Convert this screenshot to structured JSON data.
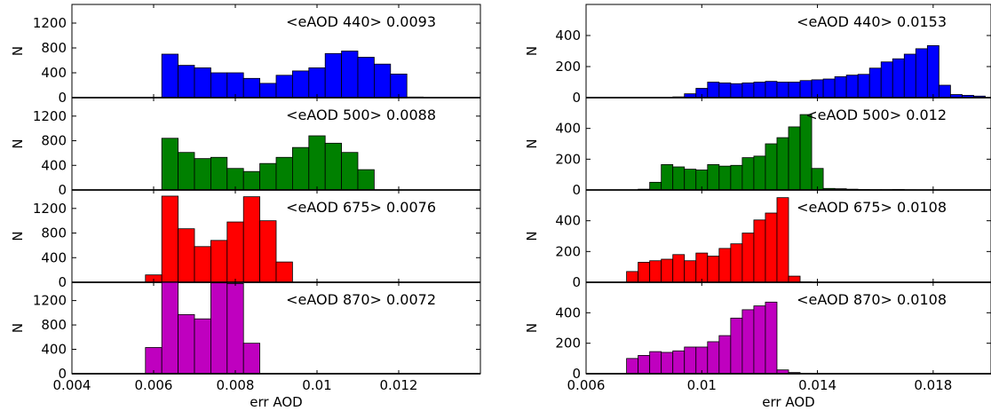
{
  "chart_data": [
    {
      "type": "bar",
      "column": "left",
      "xlabel": "err AOD",
      "xlim": [
        0.004,
        0.014
      ],
      "xticks": [
        0.004,
        0.006,
        0.008,
        0.01,
        0.012
      ],
      "xtick_labels": [
        "0.004",
        "0.006",
        "0.008",
        "0.01",
        "0.012"
      ],
      "bin_width": 0.0004,
      "panels": [
        {
          "annotation": "<eAOD 440> 0.0093",
          "ylabel": "N",
          "color": "#0000ff",
          "ylim": [
            0,
            1500
          ],
          "yticks": [
            0,
            400,
            800,
            1200
          ],
          "ytick_labels": [
            "0",
            "400",
            "800",
            "1200"
          ],
          "bin_starts": [
            0.0062,
            0.0066,
            0.007,
            0.0074,
            0.0078,
            0.0082,
            0.0086,
            0.009,
            0.0094,
            0.0098,
            0.0102,
            0.0106,
            0.011,
            0.0114,
            0.0118,
            0.0122
          ],
          "values": [
            700,
            520,
            480,
            400,
            400,
            310,
            230,
            360,
            430,
            480,
            710,
            750,
            650,
            540,
            380,
            10
          ]
        },
        {
          "annotation": "<eAOD 500> 0.0088",
          "ylabel": "N",
          "color": "#008000",
          "ylim": [
            0,
            1500
          ],
          "yticks": [
            0,
            400,
            800,
            1200
          ],
          "ytick_labels": [
            "0",
            "400",
            "800",
            "1200"
          ],
          "bin_starts": [
            0.0062,
            0.0066,
            0.007,
            0.0074,
            0.0078,
            0.0082,
            0.0086,
            0.009,
            0.0094,
            0.0098,
            0.0102,
            0.0106,
            0.011
          ],
          "values": [
            840,
            610,
            510,
            530,
            350,
            300,
            430,
            530,
            690,
            880,
            760,
            610,
            330
          ]
        },
        {
          "annotation": "<eAOD 675> 0.0076",
          "ylabel": "N",
          "color": "#ff0000",
          "ylim": [
            0,
            1500
          ],
          "yticks": [
            0,
            400,
            800,
            1200
          ],
          "ytick_labels": [
            "0",
            "400",
            "800",
            "1200"
          ],
          "bin_starts": [
            0.0058,
            0.0062,
            0.0066,
            0.007,
            0.0074,
            0.0078,
            0.0082,
            0.0086,
            0.009
          ],
          "values": [
            120,
            1400,
            870,
            580,
            680,
            980,
            1390,
            1000,
            330
          ]
        },
        {
          "annotation": "<eAOD 870> 0.0072",
          "ylabel": "N",
          "color": "#bf00bf",
          "ylim": [
            0,
            1500
          ],
          "yticks": [
            0,
            400,
            800,
            1200
          ],
          "ytick_labels": [
            "0",
            "400",
            "800",
            "1200"
          ],
          "bin_starts": [
            0.0058,
            0.0062,
            0.0066,
            0.007,
            0.0074,
            0.0078,
            0.0082
          ],
          "values": [
            430,
            1500,
            970,
            900,
            1490,
            1480,
            500
          ]
        }
      ]
    },
    {
      "type": "bar",
      "column": "right",
      "xlabel": "err AOD",
      "xlim": [
        0.006,
        0.02
      ],
      "xticks": [
        0.006,
        0.01,
        0.014,
        0.018
      ],
      "xtick_labels": [
        "0.006",
        "0.01",
        "0.014",
        "0.018"
      ],
      "bin_width": 0.0004,
      "panels": [
        {
          "annotation": "<eAOD 440> 0.0153",
          "ylabel": "N",
          "color": "#0000ff",
          "ylim": [
            0,
            600
          ],
          "yticks": [
            0,
            200,
            400
          ],
          "ytick_labels": [
            "0",
            "200",
            "400"
          ],
          "bin_starts": [
            0.009,
            0.0094,
            0.0098,
            0.0102,
            0.0106,
            0.011,
            0.0114,
            0.0118,
            0.0122,
            0.0126,
            0.013,
            0.0134,
            0.0138,
            0.0142,
            0.0146,
            0.015,
            0.0154,
            0.0158,
            0.0162,
            0.0166,
            0.017,
            0.0174,
            0.0178,
            0.0182,
            0.0186,
            0.019,
            0.0194
          ],
          "values": [
            5,
            25,
            60,
            100,
            95,
            90,
            95,
            100,
            105,
            100,
            100,
            110,
            115,
            120,
            135,
            145,
            150,
            190,
            230,
            250,
            280,
            315,
            335,
            80,
            20,
            15,
            10
          ]
        },
        {
          "annotation": "<eAOD 500> 0.012",
          "ylabel": "N",
          "color": "#008000",
          "ylim": [
            0,
            600
          ],
          "yticks": [
            0,
            200,
            400
          ],
          "ytick_labels": [
            "0",
            "200",
            "400"
          ],
          "bin_starts": [
            0.0078,
            0.0082,
            0.0086,
            0.009,
            0.0094,
            0.0098,
            0.0102,
            0.0106,
            0.011,
            0.0114,
            0.0118,
            0.0122,
            0.0126,
            0.013,
            0.0134,
            0.0138,
            0.0142,
            0.0146,
            0.015,
            0.0154,
            0.0158,
            0.0162,
            0.0166,
            0.017
          ],
          "values": [
            5,
            50,
            165,
            150,
            135,
            130,
            165,
            155,
            160,
            210,
            220,
            300,
            340,
            410,
            490,
            140,
            10,
            8,
            5,
            3,
            2,
            2,
            3,
            1
          ]
        },
        {
          "annotation": "<eAOD 675> 0.0108",
          "ylabel": "N",
          "color": "#ff0000",
          "ylim": [
            0,
            600
          ],
          "yticks": [
            0,
            200,
            400
          ],
          "ytick_labels": [
            "0",
            "200",
            "400"
          ],
          "bin_starts": [
            0.0074,
            0.0078,
            0.0082,
            0.0086,
            0.009,
            0.0094,
            0.0098,
            0.0102,
            0.0106,
            0.011,
            0.0114,
            0.0118,
            0.0122,
            0.0126,
            0.013,
            0.0134
          ],
          "values": [
            70,
            130,
            140,
            150,
            180,
            140,
            190,
            170,
            220,
            250,
            320,
            405,
            450,
            550,
            40,
            3
          ]
        },
        {
          "annotation": "<eAOD 870> 0.0108",
          "ylabel": "N",
          "color": "#bf00bf",
          "ylim": [
            0,
            600
          ],
          "yticks": [
            0,
            200,
            400
          ],
          "ytick_labels": [
            "0",
            "200",
            "400"
          ],
          "bin_starts": [
            0.0074,
            0.0078,
            0.0082,
            0.0086,
            0.009,
            0.0094,
            0.0098,
            0.0102,
            0.0106,
            0.011,
            0.0114,
            0.0118,
            0.0122,
            0.0126,
            0.013,
            0.0134
          ],
          "values": [
            100,
            120,
            145,
            140,
            150,
            175,
            175,
            210,
            250,
            365,
            420,
            445,
            470,
            25,
            8,
            3
          ]
        }
      ]
    }
  ]
}
